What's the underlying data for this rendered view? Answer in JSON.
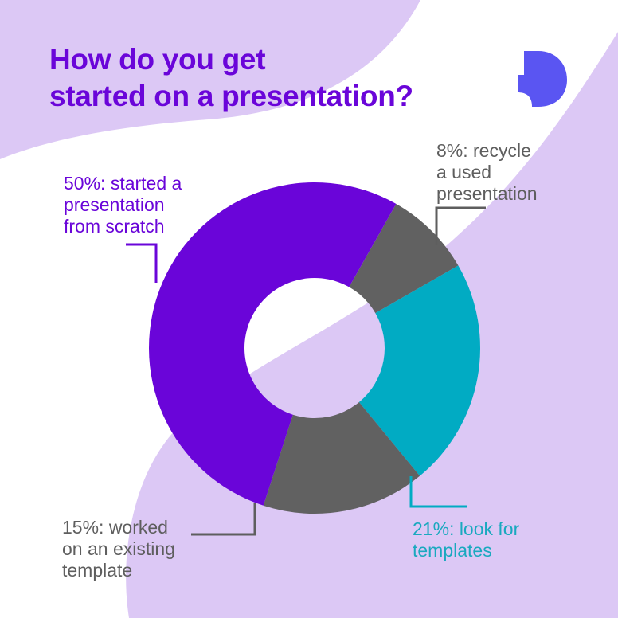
{
  "title": {
    "line1": "How do you get",
    "line2": "started on a presentation?"
  },
  "colors": {
    "title": "#6a05d9",
    "background_blob": "#dcc8f5",
    "background": "#ffffff",
    "logo": "#5a55f2",
    "scratch": "#6a05d9",
    "recycle": "#616161",
    "templates": "#01abc3",
    "existing": "#616161",
    "label_gray": "#5e5e5e",
    "label_teal": "#1aa9bf"
  },
  "logo_icon": "rounded-d-logo-icon",
  "chart_data": {
    "type": "pie",
    "variant": "donut",
    "unit": "%",
    "slices": [
      {
        "key": "scratch",
        "value": 50,
        "label_lines": [
          "50%: started a",
          "presentation",
          "from scratch"
        ]
      },
      {
        "key": "recycle",
        "value": 8,
        "label_lines": [
          "8%: recycle",
          "a used",
          "presentation"
        ]
      },
      {
        "key": "templates",
        "value": 21,
        "label_lines": [
          "21%: look for",
          "templates"
        ]
      },
      {
        "key": "existing",
        "value": 15,
        "label_lines": [
          "15%: worked",
          "on an existing",
          "template"
        ]
      }
    ]
  }
}
